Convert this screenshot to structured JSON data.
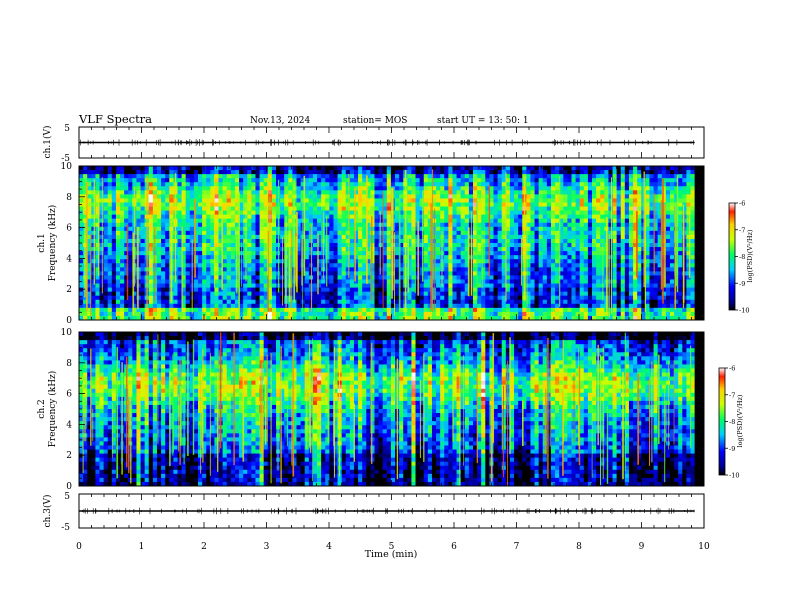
{
  "header": {
    "title": "VLF Spectra",
    "date": "Nov.13, 2024",
    "station": "station= MOS",
    "start": "start  UT  =   13: 50: 1"
  },
  "chart_data": [
    {
      "type": "line",
      "name": "ch1-waveform",
      "ylabel": "ch.1(V)",
      "ylim": [
        -5,
        5
      ],
      "yticks": [
        "5",
        "-5"
      ],
      "xlim": [
        0,
        10
      ],
      "level": 0
    },
    {
      "type": "heatmap",
      "name": "ch1-spectrogram",
      "ylabel_line1": "ch.1",
      "ylabel_line2": "Frequency  (kHz)",
      "ylim": [
        0,
        10
      ],
      "yticks": [
        "0",
        "2",
        "4",
        "6",
        "8",
        "10"
      ],
      "xlim": [
        0,
        10
      ],
      "data_end_min": 9.85,
      "colorbar": {
        "label": "log(PSD)(V²/Hz)",
        "range": [
          -10,
          -6
        ],
        "ticks": [
          "-6",
          "-7",
          "-8",
          "-9",
          "-10"
        ]
      }
    },
    {
      "type": "heatmap",
      "name": "ch2-spectrogram",
      "ylabel_line1": "ch.2",
      "ylabel_line2": "Frequency  (kHz)",
      "ylim": [
        0,
        10
      ],
      "yticks": [
        "0",
        "2",
        "4",
        "6",
        "8",
        "10"
      ],
      "xlim": [
        0,
        10
      ],
      "data_end_min": 9.85,
      "colorbar": {
        "label": "log(PSD)(V²/Hz)",
        "range": [
          -10,
          -6
        ],
        "ticks": [
          "-6",
          "-7",
          "-8",
          "-9",
          "-10"
        ]
      }
    },
    {
      "type": "line",
      "name": "ch3-waveform",
      "ylabel": "ch.3(V)",
      "ylim": [
        -5,
        5
      ],
      "yticks": [
        "5",
        "-5"
      ],
      "xlim": [
        0,
        10
      ],
      "level": 0
    }
  ],
  "xaxis": {
    "label": "Time  (min)",
    "ticks": [
      "0",
      "1",
      "2",
      "3",
      "4",
      "5",
      "6",
      "7",
      "8",
      "9",
      "10"
    ]
  }
}
